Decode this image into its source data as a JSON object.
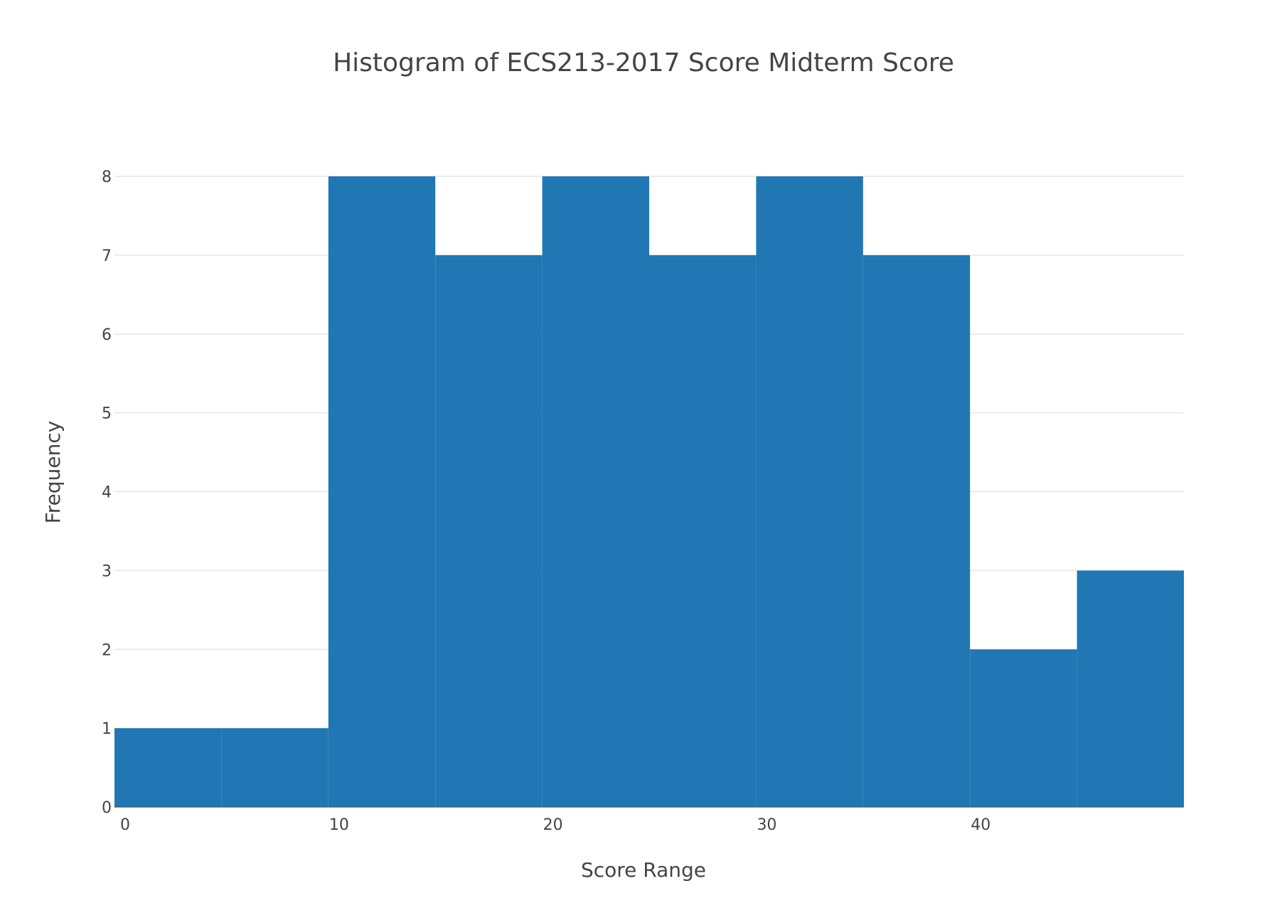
{
  "chart_data": {
    "type": "bar",
    "title": "Histogram of ECS213-2017 Score Midterm Score",
    "xlabel": "Score Range",
    "ylabel": "Frequency",
    "bin_size": 5,
    "bins": [
      {
        "start": -0.5,
        "end": 4.5,
        "count": 1
      },
      {
        "start": 4.5,
        "end": 9.5,
        "count": 1
      },
      {
        "start": 9.5,
        "end": 14.5,
        "count": 8
      },
      {
        "start": 14.5,
        "end": 19.5,
        "count": 7
      },
      {
        "start": 19.5,
        "end": 24.5,
        "count": 8
      },
      {
        "start": 24.5,
        "end": 29.5,
        "count": 7
      },
      {
        "start": 29.5,
        "end": 34.5,
        "count": 8
      },
      {
        "start": 34.5,
        "end": 39.5,
        "count": 7
      },
      {
        "start": 39.5,
        "end": 44.5,
        "count": 2
      },
      {
        "start": 44.5,
        "end": 49.5,
        "count": 3
      }
    ],
    "xlim": [
      -0.5,
      49.5
    ],
    "ylim": [
      0,
      8
    ],
    "x_ticks": [
      0,
      10,
      20,
      30,
      40
    ],
    "y_ticks": [
      0,
      1,
      2,
      3,
      4,
      5,
      6,
      7,
      8
    ],
    "grid": true,
    "legend": false,
    "bar_color": "#2077b4",
    "grid_color": "#e6e6e6",
    "text_color": "#444444"
  }
}
